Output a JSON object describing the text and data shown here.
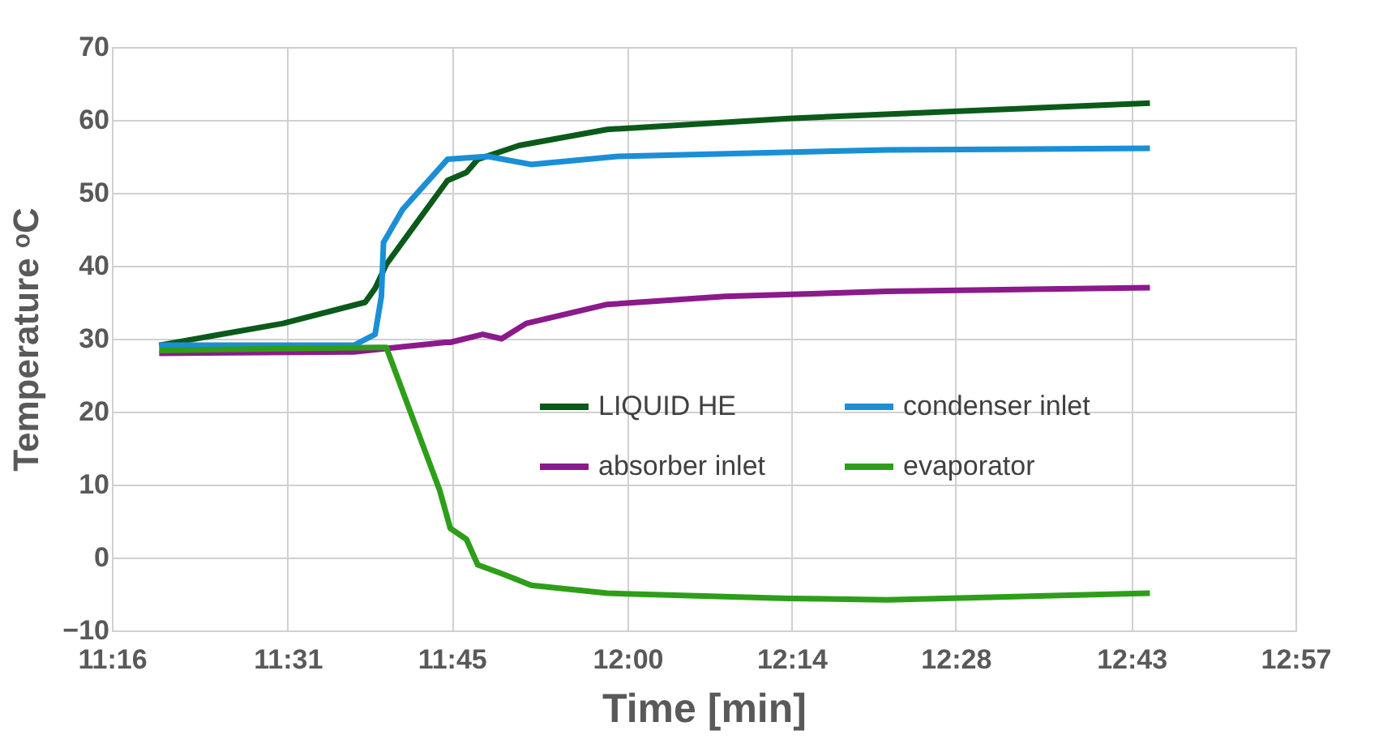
{
  "chart_data": {
    "type": "line",
    "xlabel": "Time [min]",
    "ylabel": "Temperature ᵒC",
    "xlim": [
      11.2667,
      12.95
    ],
    "xticks": [
      {
        "value": 11.2667,
        "label": "11:16"
      },
      {
        "value": 11.5167,
        "label": "11:31"
      },
      {
        "value": 11.75,
        "label": "11:45"
      },
      {
        "value": 12.0,
        "label": "12:00"
      },
      {
        "value": 12.2333,
        "label": "12:14"
      },
      {
        "value": 12.4667,
        "label": "12:28"
      },
      {
        "value": 12.7167,
        "label": "12:43"
      },
      {
        "value": 12.95,
        "label": "12:57"
      }
    ],
    "ylim": [
      -10,
      70
    ],
    "yticks": [
      -10,
      0,
      10,
      20,
      30,
      40,
      50,
      60,
      70
    ],
    "grid": true,
    "legend": "right",
    "line_style": "solid",
    "marker": "none",
    "series": [
      {
        "name": "LIQUID HE",
        "color": "#0b5a1a",
        "x": [
          11.334,
          11.51,
          11.627,
          11.641,
          11.657,
          11.744,
          11.771,
          11.787,
          11.846,
          11.971,
          12.229,
          12.47,
          12.743
        ],
        "values": [
          29.1,
          32.1,
          35.0,
          36.9,
          40.2,
          51.7,
          52.8,
          54.6,
          56.5,
          58.7,
          60.2,
          61.2,
          62.3
        ]
      },
      {
        "name": "condenser inlet",
        "color": "#1a8fd6",
        "x": [
          11.334,
          11.611,
          11.641,
          11.65,
          11.653,
          11.68,
          11.744,
          11.801,
          11.863,
          11.986,
          12.369,
          12.743
        ],
        "values": [
          29.1,
          29.1,
          30.6,
          35.8,
          43.2,
          47.7,
          54.6,
          55.0,
          53.9,
          55.0,
          55.9,
          56.1
        ]
      },
      {
        "name": "absorber inlet",
        "color": "#8b1a8b",
        "x": [
          11.334,
          11.611,
          11.741,
          11.748,
          11.794,
          11.821,
          11.856,
          11.971,
          12.139,
          12.369,
          12.743
        ],
        "values": [
          28.0,
          28.2,
          29.5,
          29.5,
          30.6,
          30.0,
          32.1,
          34.7,
          35.8,
          36.5,
          37.0
        ]
      },
      {
        "name": "evaporator",
        "color": "#2e9e1a",
        "x": [
          11.334,
          11.641,
          11.657,
          11.733,
          11.748,
          11.771,
          11.787,
          11.824,
          11.863,
          11.971,
          12.229,
          12.369,
          12.743
        ],
        "values": [
          28.4,
          28.8,
          28.8,
          9.2,
          4.0,
          2.5,
          -1.0,
          -2.3,
          -3.8,
          -4.9,
          -5.6,
          -5.8,
          -4.9
        ]
      }
    ]
  }
}
